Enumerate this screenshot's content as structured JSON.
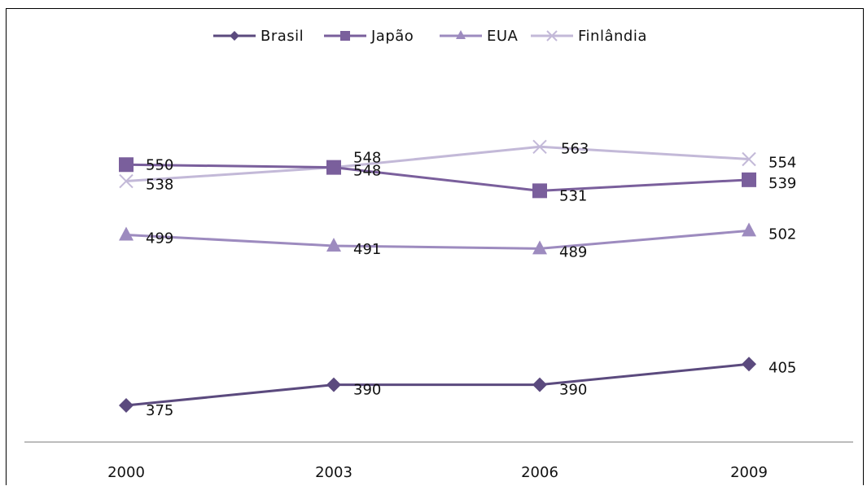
{
  "chart_data": {
    "type": "line",
    "title": "",
    "xlabel": "",
    "ylabel": "",
    "x": [
      "2000",
      "2003",
      "2006",
      "2009"
    ],
    "ylim": [
      350,
      575
    ],
    "grid": false,
    "legend_position": "top-center",
    "series": [
      {
        "name": "Brasil",
        "values": [
          375,
          390,
          390,
          405
        ],
        "labels": [
          "375",
          "390",
          "390",
          "405"
        ],
        "color": "#5b4a7e",
        "marker": "diamond"
      },
      {
        "name": "Japão",
        "values": [
          550,
          548,
          531,
          539
        ],
        "labels": [
          "550",
          "548",
          "531",
          "539"
        ],
        "color": "#7a5f9c",
        "marker": "square"
      },
      {
        "name": "EUA",
        "values": [
          499,
          491,
          489,
          502
        ],
        "labels": [
          "499",
          "491",
          "489",
          "502"
        ],
        "color": "#9d8bbf",
        "marker": "triangle"
      },
      {
        "name": "Finlândia",
        "values": [
          538,
          548,
          563,
          554
        ],
        "labels": [
          "538",
          "548",
          "563",
          "554"
        ],
        "color": "#c3b9d8",
        "marker": "x"
      }
    ]
  }
}
